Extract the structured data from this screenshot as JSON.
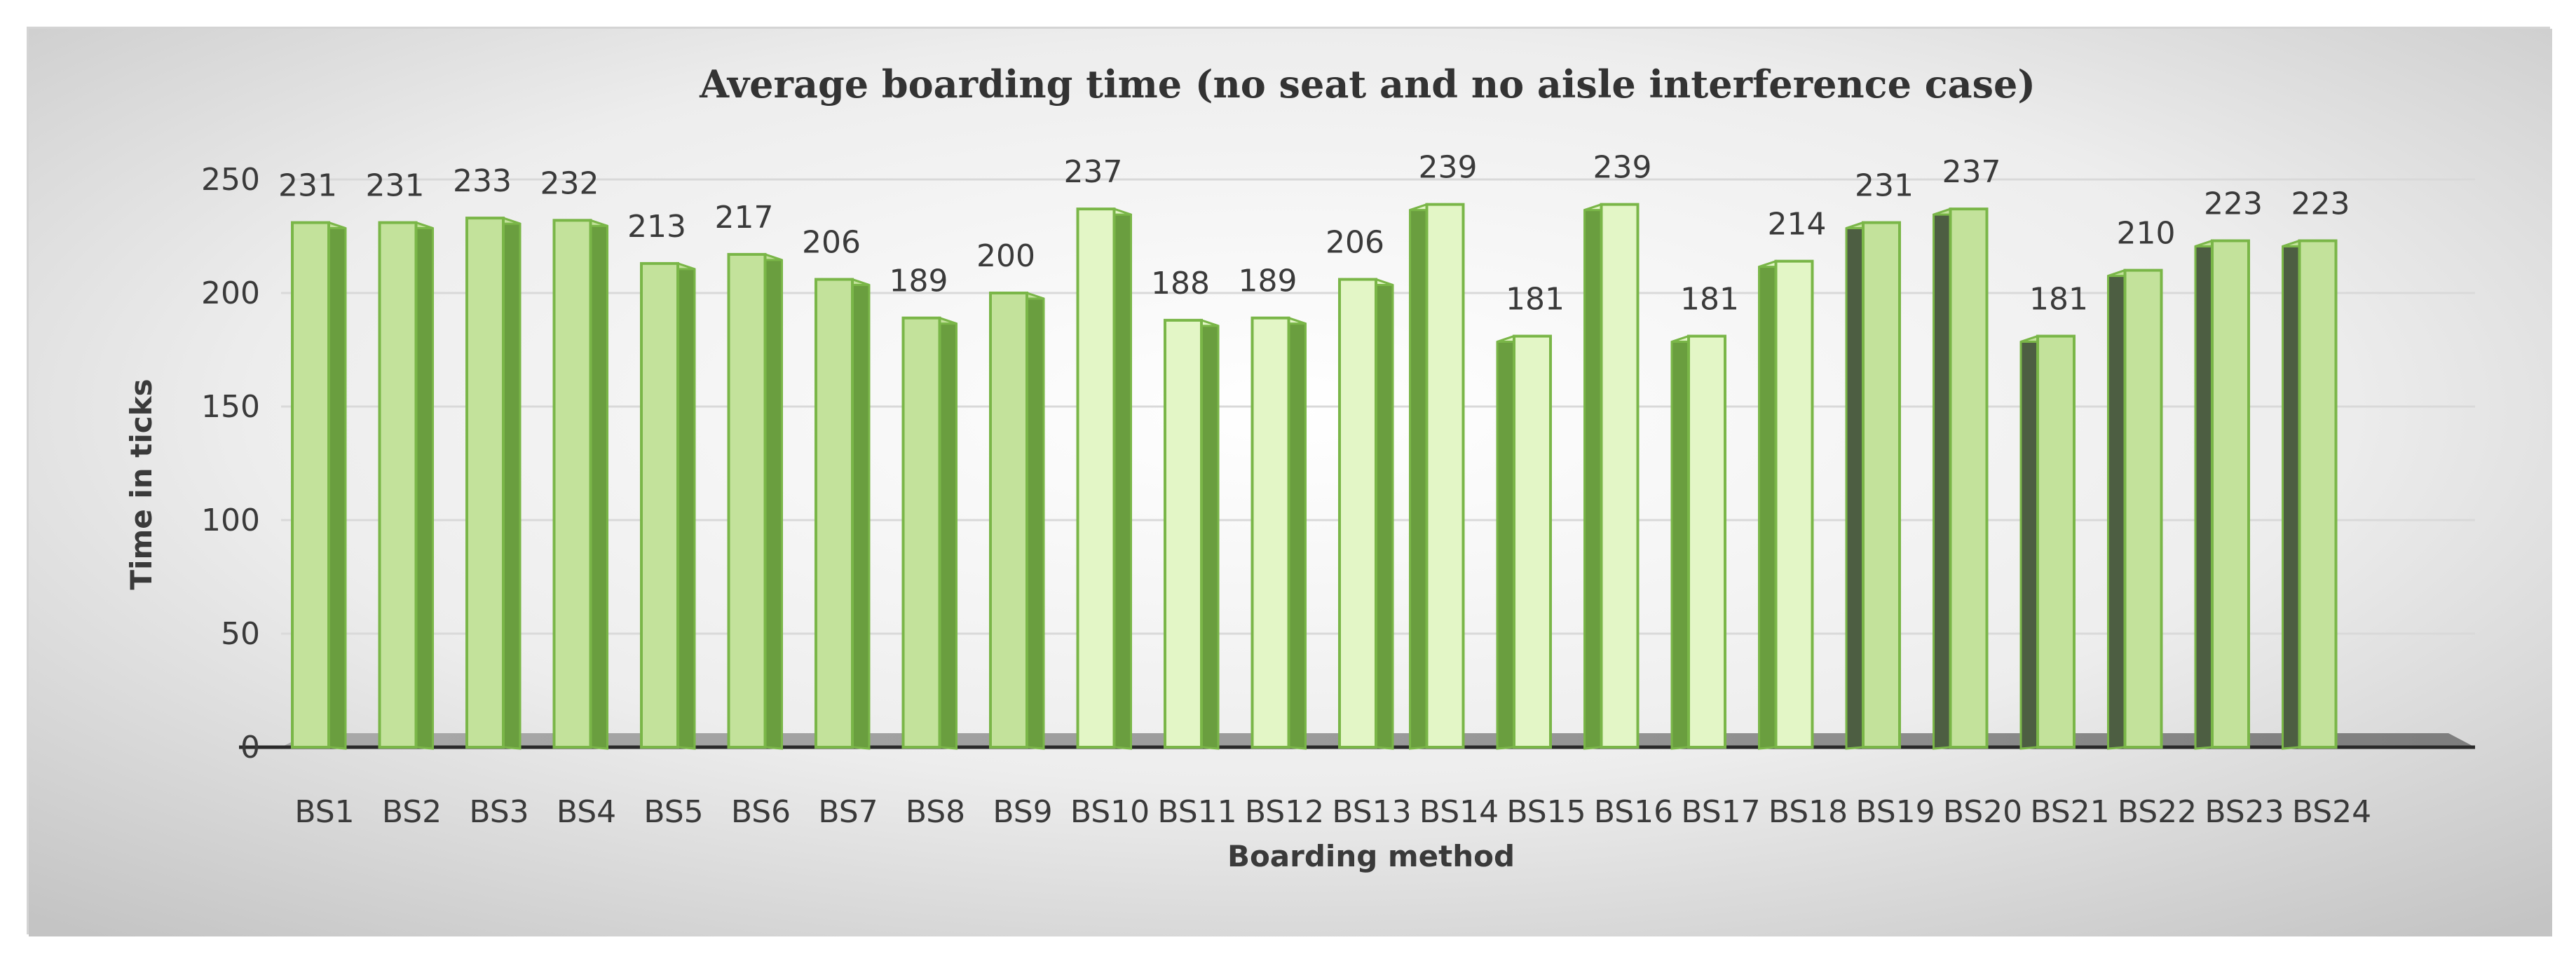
{
  "chart_data": {
    "type": "bar",
    "title": "Average boarding time (no seat and no aisle interference case)",
    "xlabel": "Boarding method",
    "ylabel": "Time in ticks",
    "ylim": [
      0,
      250
    ],
    "yticks": [
      0,
      50,
      100,
      150,
      200,
      250
    ],
    "grid": true,
    "legend": "none",
    "categories": [
      "BS1",
      "BS2",
      "BS3",
      "BS4",
      "BS5",
      "BS6",
      "BS7",
      "BS8",
      "BS9",
      "BS10",
      "BS11",
      "BS12",
      "BS13",
      "BS14",
      "BS15",
      "BS16",
      "BS17",
      "BS18",
      "BS19",
      "BS20",
      "BS21",
      "BS22",
      "BS23",
      "BS24"
    ],
    "series": [
      {
        "values": [
          231,
          231,
          233,
          232,
          213,
          217,
          206,
          189,
          200,
          237,
          188,
          189,
          206,
          239,
          181,
          239,
          181,
          214,
          231,
          237,
          181,
          210,
          223,
          223
        ]
      }
    ],
    "colors": {
      "bar_front": "#c3e29b",
      "bar_front_light": "#e3f6c6",
      "bar_edge": "#7ab648",
      "bar_side": "#6a9e3f",
      "bar_side_dark": "#4d5e42",
      "floor": "#8a8a8a"
    }
  }
}
